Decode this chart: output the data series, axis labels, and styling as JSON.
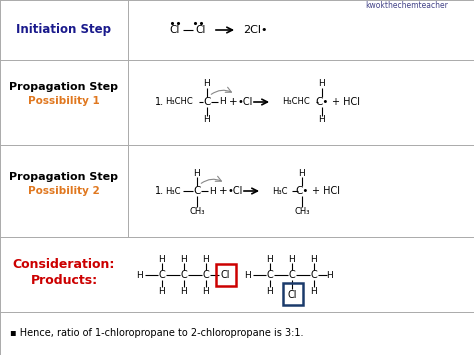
{
  "bg_color": "#e8e8e8",
  "white": "#ffffff",
  "orange_color": "#e07820",
  "red_color": "#cc0000",
  "blue_color": "#1a3a6b",
  "dark_blue_label": "#1a1a8c",
  "watermark": "kwokthechemteacher",
  "initiation_label": "Initiation Step",
  "prop1_label1": "Propagation Step",
  "prop1_label2": "Possibility 1",
  "prop2_label1": "Propagation Step",
  "prop2_label2": "Possibility 2",
  "consideration_label1": "Consideration:",
  "consideration_label2": "Products:",
  "bottom_text": "▪ Hence, ratio of 1-chloropropane to 2-chloropropane is 3:1.",
  "fig_width": 4.74,
  "fig_height": 3.55,
  "dpi": 100
}
